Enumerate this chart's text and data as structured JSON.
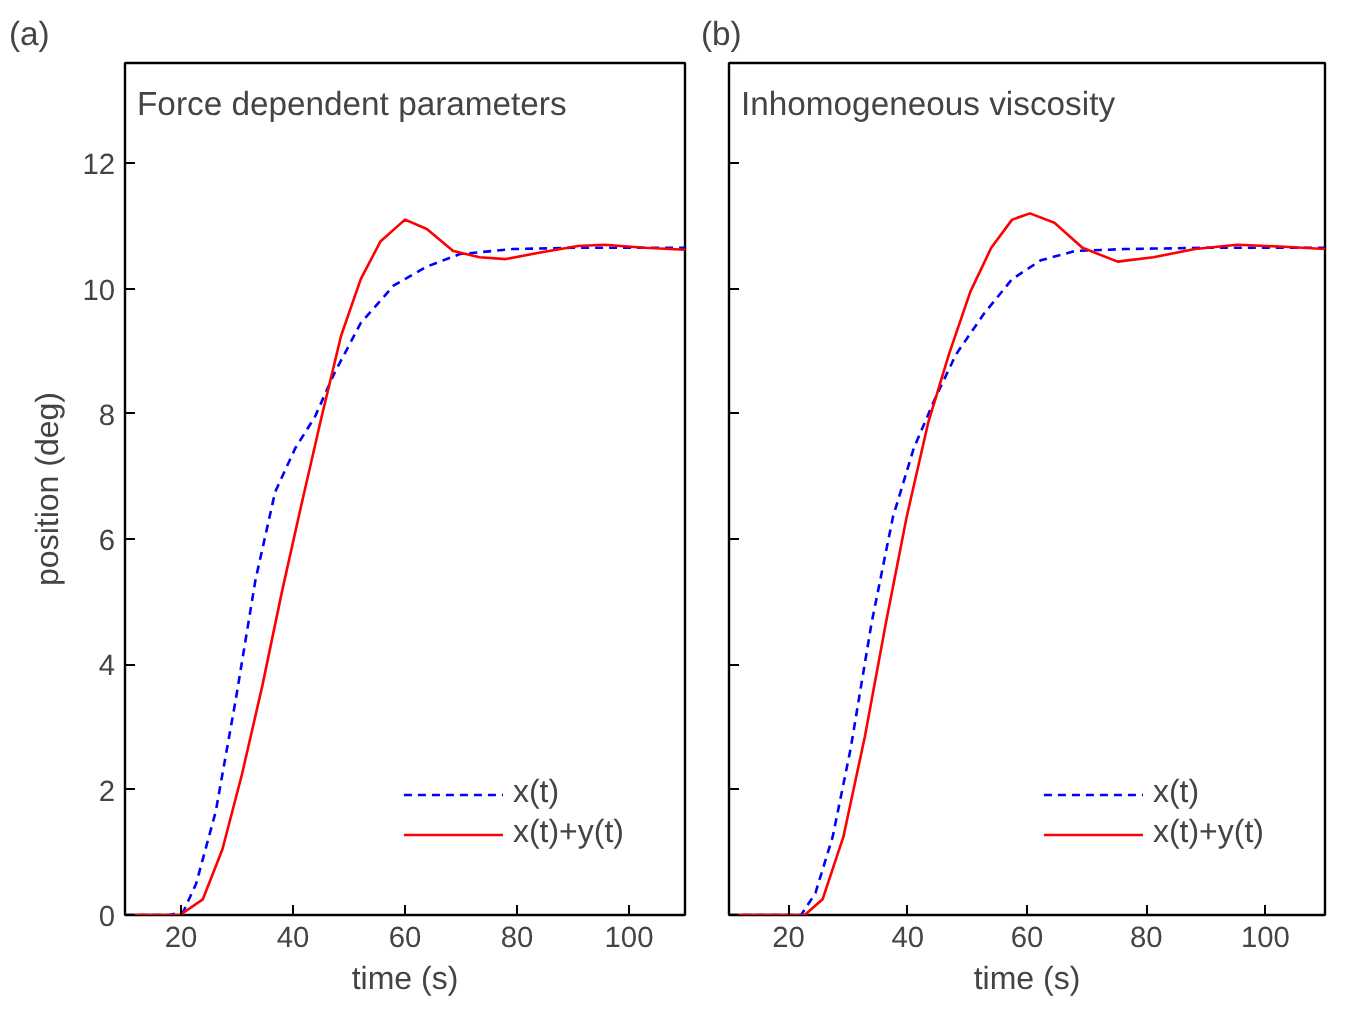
{
  "chart_data": [
    {
      "type": "line",
      "title": "Force dependent parameters",
      "annotations": [
        "(a)"
      ],
      "xlabel": "time (s)",
      "ylabel": "position (deg)",
      "xlim": [
        10,
        110
      ],
      "xticks": [
        20,
        40,
        60,
        80,
        100
      ],
      "ylim": [
        0,
        13.6
      ],
      "yticks": [
        0,
        2,
        4,
        6,
        8,
        10,
        12
      ],
      "grid": false,
      "legend": "bottom right",
      "series": [
        {
          "name": "x(t)",
          "color": "#0000ff",
          "line_style": "dashed",
          "x": [
            10,
            18,
            20.4,
            22.7,
            26.2,
            29.8,
            33.3,
            36.8,
            40.4,
            43.9,
            47.4,
            52.1,
            58,
            63.9,
            69.8,
            79.2,
            90,
            110
          ],
          "values": [
            0,
            0,
            0.05,
            0.5,
            1.65,
            3.45,
            5.35,
            6.75,
            7.45,
            7.95,
            8.65,
            9.45,
            10.05,
            10.35,
            10.55,
            10.63,
            10.65,
            10.65
          ]
        },
        {
          "name": "x(t)+y(t)",
          "color": "#ff0000",
          "line_style": "solid",
          "x": [
            10,
            19.8,
            23.9,
            27.4,
            30.9,
            34.5,
            38,
            41.5,
            45.1,
            48.6,
            52.1,
            55.6,
            60,
            63.9,
            68.6,
            73.3,
            78,
            83.9,
            90.9,
            95.6,
            102.7,
            110
          ],
          "values": [
            0,
            0,
            0.25,
            1.05,
            2.25,
            3.65,
            5.15,
            6.55,
            7.95,
            9.25,
            10.15,
            10.75,
            11.1,
            10.95,
            10.6,
            10.5,
            10.47,
            10.57,
            10.68,
            10.7,
            10.65,
            10.62
          ]
        }
      ]
    },
    {
      "type": "line",
      "title": "Inhomogeneous viscosity",
      "annotations": [
        "(b)"
      ],
      "xlabel": "time (s)",
      "xlim": [
        10,
        110
      ],
      "xticks": [
        20,
        40,
        60,
        80,
        100
      ],
      "ylim": [
        0,
        13.6
      ],
      "yticks": [
        0,
        2,
        4,
        6,
        8,
        10,
        12
      ],
      "grid": false,
      "legend": "bottom right",
      "tick_labels": "x",
      "series": [
        {
          "name": "x(t)",
          "color": "#0000ff",
          "line_style": "dashed",
          "x": [
            10,
            22.1,
            24.5,
            27.4,
            30.4,
            33.9,
            37.5,
            41,
            44.6,
            48.1,
            52.8,
            57.5,
            62.3,
            68.1,
            76.4,
            90,
            110
          ],
          "values": [
            0,
            0,
            0.35,
            1.25,
            2.65,
            4.65,
            6.35,
            7.45,
            8.25,
            8.95,
            9.6,
            10.15,
            10.45,
            10.6,
            10.63,
            10.65,
            10.65
          ]
        },
        {
          "name": "x(t)+y(t)",
          "color": "#ff0000",
          "line_style": "solid",
          "x": [
            10,
            22.7,
            25.7,
            29.2,
            32.8,
            36.3,
            39.8,
            43.4,
            46.9,
            50.5,
            54,
            57.5,
            60.5,
            64.6,
            69.3,
            75.2,
            81.2,
            88.2,
            95.3,
            102.4,
            110
          ],
          "values": [
            0,
            0,
            0.25,
            1.25,
            2.85,
            4.65,
            6.35,
            7.85,
            8.95,
            9.95,
            10.65,
            11.1,
            11.2,
            11.05,
            10.65,
            10.43,
            10.5,
            10.63,
            10.7,
            10.67,
            10.63
          ]
        }
      ]
    }
  ]
}
